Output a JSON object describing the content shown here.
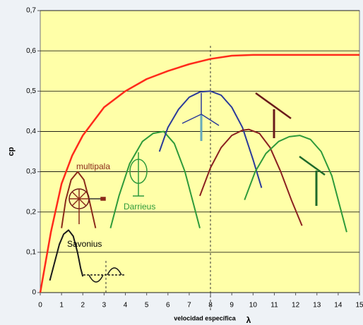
{
  "chart_data": {
    "type": "line",
    "xlabel": "velocidad específica",
    "xsymbol": "λ",
    "ylabel": "cp",
    "xlim": [
      0,
      15
    ],
    "ylim": [
      0,
      0.7
    ],
    "xticks": [
      0,
      1,
      2,
      3,
      4,
      5,
      6,
      7,
      8,
      9,
      10,
      11,
      12,
      13,
      14,
      15
    ],
    "yticks": [
      0,
      {
        "value": 0.1,
        "label": "0,1"
      },
      {
        "value": 0.2,
        "label": "0,2"
      },
      {
        "value": 0.3,
        "label": "0,3"
      },
      {
        "value": 0.4,
        "label": "0,4"
      },
      {
        "value": 0.5,
        "label": "0,5"
      },
      {
        "value": 0.6,
        "label": "0,6"
      },
      {
        "value": 0.7,
        "label": "0,7"
      }
    ],
    "grid": true,
    "series": [
      {
        "color": "#ff2a1a",
        "x": [
          0,
          0.5,
          1,
          1.5,
          2,
          3,
          4,
          5,
          6,
          7,
          8,
          9,
          10,
          12,
          15
        ],
        "values": [
          0,
          0.15,
          0.27,
          0.34,
          0.39,
          0.46,
          0.5,
          0.53,
          0.55,
          0.567,
          0.58,
          0.588,
          0.59,
          0.59,
          0.59
        ]
      },
      {
        "name": "Savonius",
        "color": "#1a1a1a",
        "x": [
          0.45,
          0.7,
          0.9,
          1.1,
          1.33,
          1.55,
          1.75,
          1.9,
          2.0
        ],
        "values": [
          0.03,
          0.08,
          0.12,
          0.145,
          0.155,
          0.14,
          0.1,
          0.06,
          0.04
        ]
      },
      {
        "name": "multipala",
        "color": "#8b2a1a",
        "x": [
          1.0,
          1.2,
          1.45,
          1.76,
          2.05,
          2.3,
          2.6
        ],
        "values": [
          0.16,
          0.23,
          0.28,
          0.3,
          0.28,
          0.23,
          0.16
        ]
      },
      {
        "name": "Darrieus",
        "color": "#2e9a3a",
        "x": [
          3.3,
          3.7,
          4.2,
          4.8,
          5.3,
          5.8,
          6.3,
          6.8,
          7.2,
          7.5
        ],
        "values": [
          0.16,
          0.24,
          0.32,
          0.375,
          0.395,
          0.4,
          0.37,
          0.3,
          0.22,
          0.16
        ]
      },
      {
        "color": "#2a3a9a",
        "x": [
          5.6,
          6.0,
          6.5,
          7.0,
          7.5,
          8.0,
          8.5,
          9.0,
          9.5,
          10.0,
          10.4
        ],
        "values": [
          0.35,
          0.41,
          0.455,
          0.485,
          0.498,
          0.5,
          0.49,
          0.46,
          0.41,
          0.33,
          0.26
        ]
      },
      {
        "color": "#8b2020",
        "x": [
          7.5,
          8.0,
          8.5,
          9.0,
          9.5,
          9.8,
          10.3,
          10.8,
          11.3,
          11.8,
          12.3
        ],
        "values": [
          0.24,
          0.31,
          0.36,
          0.39,
          0.403,
          0.405,
          0.395,
          0.36,
          0.3,
          0.23,
          0.166
        ]
      },
      {
        "color": "#2e9a3a",
        "x": [
          9.6,
          10.1,
          10.6,
          11.2,
          11.7,
          12.2,
          12.7,
          13.2,
          13.7,
          14.1,
          14.4
        ],
        "values": [
          0.23,
          0.3,
          0.345,
          0.375,
          0.387,
          0.39,
          0.38,
          0.35,
          0.29,
          0.21,
          0.15
        ]
      }
    ]
  }
}
